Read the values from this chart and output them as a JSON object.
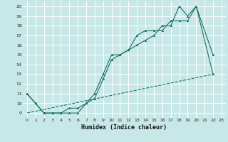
{
  "xlabel": "Humidex (Indice chaleur)",
  "bg_color": "#c8e8e8",
  "line_color": "#1a7060",
  "grid_color": "#ffffff",
  "xlim": [
    -0.5,
    23.5
  ],
  "ylim": [
    8.5,
    20.5
  ],
  "xticks": [
    0,
    1,
    2,
    3,
    4,
    5,
    6,
    7,
    8,
    9,
    10,
    11,
    12,
    13,
    14,
    15,
    16,
    17,
    18,
    19,
    20,
    21,
    22,
    23
  ],
  "yticks": [
    9,
    10,
    11,
    12,
    13,
    14,
    15,
    16,
    17,
    18,
    19,
    20
  ],
  "series1_x": [
    0,
    1,
    2,
    3,
    4,
    5,
    6,
    7,
    8,
    9,
    10,
    11,
    12,
    13,
    14,
    15,
    16,
    17,
    18,
    19,
    20,
    22
  ],
  "series1_y": [
    11,
    10,
    9,
    9,
    9,
    9,
    9,
    10,
    11,
    13,
    15,
    15,
    15.5,
    17,
    17.5,
    17.5,
    17.5,
    18.5,
    18.5,
    18.5,
    20,
    13
  ],
  "series2_x": [
    0,
    1,
    2,
    3,
    4,
    5,
    6,
    7,
    8,
    9,
    10,
    11,
    12,
    13,
    14,
    15,
    16,
    17,
    18,
    19,
    20,
    22
  ],
  "series2_y": [
    11,
    10,
    9,
    9,
    9,
    9.5,
    9.5,
    10,
    10.5,
    12.5,
    14.5,
    15,
    15.5,
    16,
    16.5,
    17,
    18,
    18,
    20,
    19,
    20,
    15
  ],
  "series3_x": [
    0,
    22
  ],
  "series3_y": [
    9,
    13
  ],
  "xlabel_fontsize": 6,
  "tick_fontsize": 4.5
}
